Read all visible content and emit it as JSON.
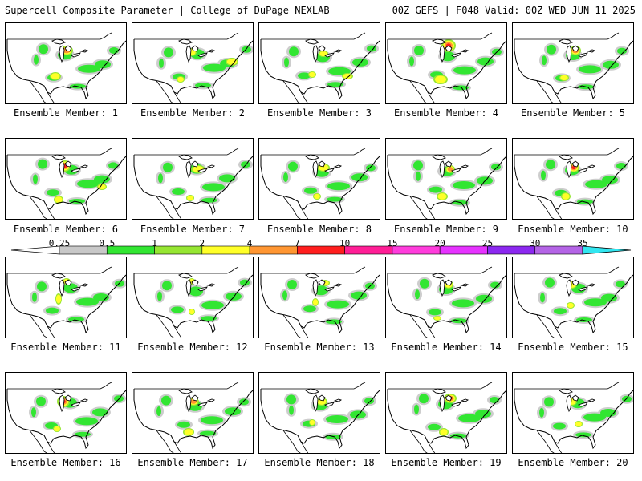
{
  "header": {
    "left": "Supercell Composite Parameter | College of DuPage NEXLAB",
    "right": "00Z GEFS | F048 Valid: 00Z WED JUN 11 2025"
  },
  "panels": [
    {
      "label": "Ensemble Member: 1"
    },
    {
      "label": "Ensemble Member: 2"
    },
    {
      "label": "Ensemble Member: 3"
    },
    {
      "label": "Ensemble Member: 4"
    },
    {
      "label": "Ensemble Member: 5"
    },
    {
      "label": "Ensemble Member: 6"
    },
    {
      "label": "Ensemble Member: 7"
    },
    {
      "label": "Ensemble Member: 8"
    },
    {
      "label": "Ensemble Member: 9"
    },
    {
      "label": "Ensemble Member: 10"
    },
    {
      "label": "Ensemble Member: 11"
    },
    {
      "label": "Ensemble Member: 12"
    },
    {
      "label": "Ensemble Member: 13"
    },
    {
      "label": "Ensemble Member: 14"
    },
    {
      "label": "Ensemble Member: 15"
    },
    {
      "label": "Ensemble Member: 16"
    },
    {
      "label": "Ensemble Member: 17"
    },
    {
      "label": "Ensemble Member: 18"
    },
    {
      "label": "Ensemble Member: 19"
    },
    {
      "label": "Ensemble Member: 20"
    }
  ],
  "colorbar": {
    "ticks": [
      "0.25",
      "0.5",
      "1",
      "2",
      "4",
      "7",
      "10",
      "15",
      "20",
      "25",
      "30",
      "35"
    ],
    "colors": [
      "#c8c8c8",
      "#32e632",
      "#96e632",
      "#ffff28",
      "#ff9632",
      "#ff1e1e",
      "#ff1e96",
      "#ff3cdc",
      "#e632ff",
      "#8c28f0",
      "#b464e6",
      "#32e6f0"
    ]
  },
  "colors": {
    "light": "#c8c8c8",
    "green": "#32e632",
    "lime": "#96e632",
    "yellow": "#ffff28",
    "orange": "#ff9632",
    "red": "#ff1e1e"
  }
}
